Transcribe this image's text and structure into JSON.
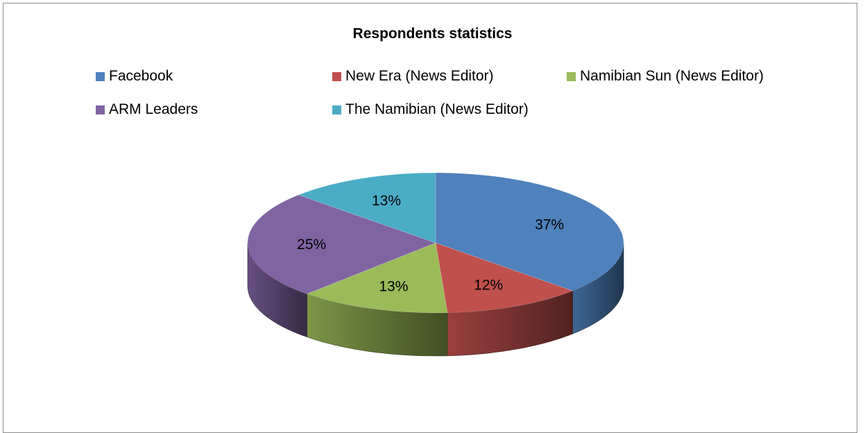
{
  "chart_data": {
    "type": "pie",
    "title": "Respondents statistics",
    "categories": [
      "Facebook",
      "New Era (News Editor)",
      "Namibian Sun (News Editor)",
      "ARM Leaders",
      "The Namibian (News Editor)"
    ],
    "values": [
      37,
      12,
      13,
      25,
      13
    ],
    "labels": [
      "37%",
      "12%",
      "13%",
      "25%",
      "13%"
    ],
    "colors": [
      "#4F81BD",
      "#C0504D",
      "#9BBB59",
      "#8064A2",
      "#4BACC6"
    ],
    "legend_position": "top",
    "style": "3d"
  }
}
